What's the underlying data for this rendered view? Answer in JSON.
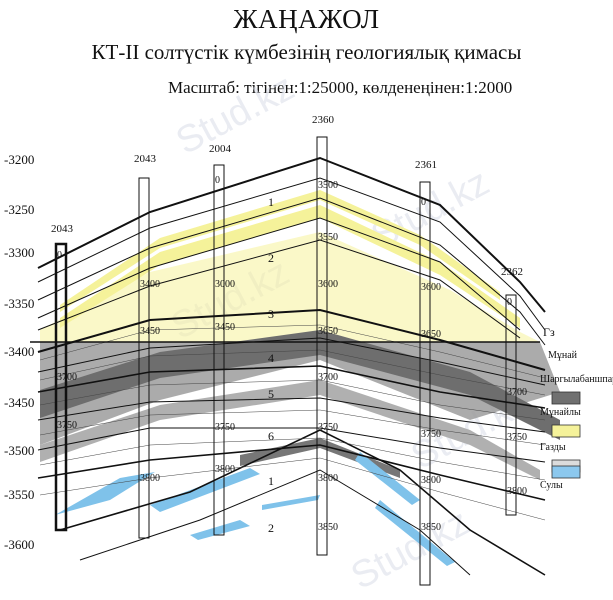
{
  "header": {
    "title": "ЖАҢАЖОЛ",
    "subtitle": "КТ-II солтүстік күмбезінің геологиялық қимасы",
    "scale": "Масштаб: тігінен:1:25000, көлденеңінен:1:2000"
  },
  "depth_axis": [
    "-3200",
    "-3250",
    "-3300",
    "-3350",
    "-3400",
    "-3450",
    "-3500",
    "-3550",
    "-3600"
  ],
  "wells": [
    {
      "name": "2043",
      "depths": [
        "0",
        "3700",
        "3750"
      ]
    },
    {
      "name": "2043",
      "depths": [
        "3400",
        "3450",
        "3800"
      ]
    },
    {
      "name": "2004",
      "depths": [
        "0",
        "3000",
        "3450",
        "3750",
        "3800"
      ]
    },
    {
      "name": "2360",
      "depths": [
        "3500",
        "3550",
        "3600",
        "3650",
        "3700",
        "3750",
        "3800",
        "3850"
      ]
    },
    {
      "name": "2361",
      "depths": [
        "0",
        "3600",
        "3650",
        "3750",
        "3800",
        "3850"
      ]
    },
    {
      "name": "2362",
      "depths": [
        "0",
        "3700",
        "3750",
        "3800"
      ]
    }
  ],
  "zones": [
    "1",
    "2",
    "3",
    "4",
    "5",
    "6",
    "1",
    "2"
  ],
  "contacts": {
    "gas_oil": "Гз",
    "oil_label": "Мұнай"
  },
  "legend": [
    {
      "label": "Шаргылабаншпар",
      "color": "#707070"
    },
    {
      "label": "Мұнайлы",
      "color": "#f5f29a"
    },
    {
      "label": "Газды",
      "color": "#dcdcdc"
    },
    {
      "label": "Сулы",
      "color": "#8cc8ee"
    }
  ],
  "watermark": "Stud.kz"
}
